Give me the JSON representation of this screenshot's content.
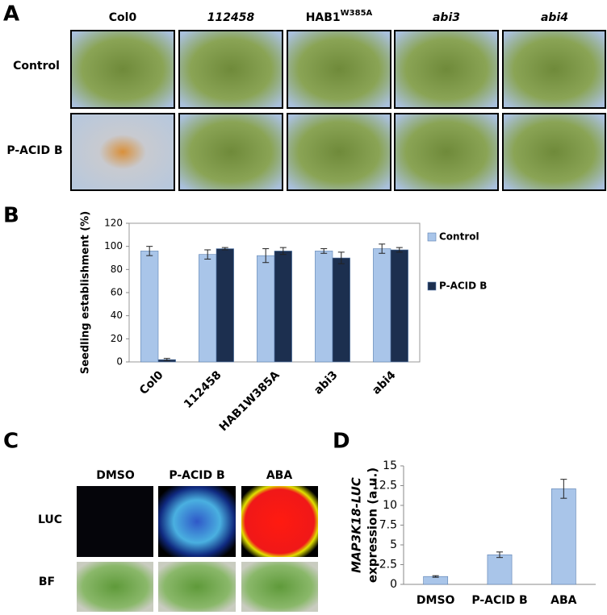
{
  "panel_labels": [
    "A",
    "B",
    "C",
    "D"
  ],
  "panel_a": {
    "columns": [
      "Col0",
      "112458",
      {
        "text": "HAB1",
        "sup": "W385A"
      },
      "abi3",
      "abi4"
    ],
    "rows": [
      "Control",
      "P-ACID B"
    ]
  },
  "panel_c": {
    "columns": [
      "DMSO",
      "P-ACID B",
      "ABA"
    ],
    "rows": [
      "LUC",
      "BF"
    ]
  },
  "chart_data": [
    {
      "type": "bar",
      "ylabel": [
        "Seedling establishment (%)"
      ],
      "categories": [
        "Col0",
        "112458",
        "HAB1W385A",
        "abi3",
        "abi4"
      ],
      "series": [
        {
          "name": "Control",
          "color": "#a9c5e9",
          "values": [
            96,
            93,
            92,
            96,
            98
          ],
          "errors": [
            4,
            4,
            6,
            2,
            4
          ]
        },
        {
          "name": "P-ACID B",
          "color": "#1c2f4f",
          "values": [
            2,
            98,
            96,
            90,
            97
          ],
          "errors": [
            1,
            1,
            3,
            5,
            2
          ]
        }
      ],
      "ylim": [
        0,
        120
      ],
      "yticks": [
        0,
        20,
        40,
        60,
        80,
        100,
        120
      ],
      "grid": false,
      "legend": "right"
    },
    {
      "type": "bar",
      "ylabel": [
        "MAP3K18-LUC",
        "expression (a.u.)"
      ],
      "categories": [
        "DMSO",
        "P-ACID B",
        "ABA"
      ],
      "values": [
        1.0,
        3.75,
        12.1
      ],
      "errors": [
        0.1,
        0.35,
        1.2
      ],
      "color": "#a9c5e9",
      "ylim": [
        0,
        15
      ],
      "yticks": [
        0,
        2.5,
        5,
        7.5,
        10,
        12.5,
        15
      ],
      "grid": false
    }
  ]
}
